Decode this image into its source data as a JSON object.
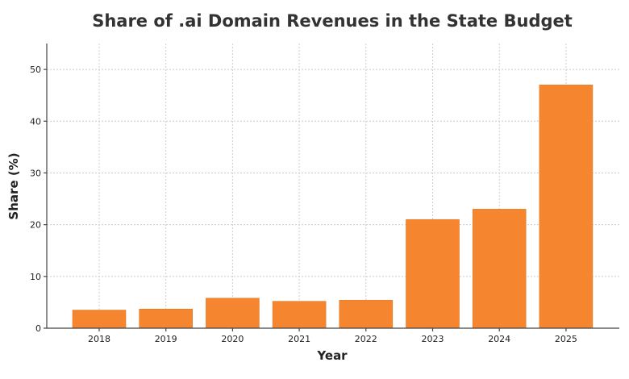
{
  "chart_data": {
    "type": "bar",
    "title": "Share of .ai Domain Revenues in the State Budget",
    "xlabel": "Year",
    "ylabel": "Share (%)",
    "categories": [
      "2018",
      "2019",
      "2020",
      "2021",
      "2022",
      "2023",
      "2024",
      "2025"
    ],
    "values": [
      3.5,
      3.7,
      5.8,
      5.2,
      5.4,
      21,
      23,
      47
    ],
    "ylim": [
      0,
      55
    ],
    "yticks": [
      0,
      10,
      20,
      30,
      40,
      50
    ],
    "grid": true,
    "bar_color": "#f5862f"
  }
}
